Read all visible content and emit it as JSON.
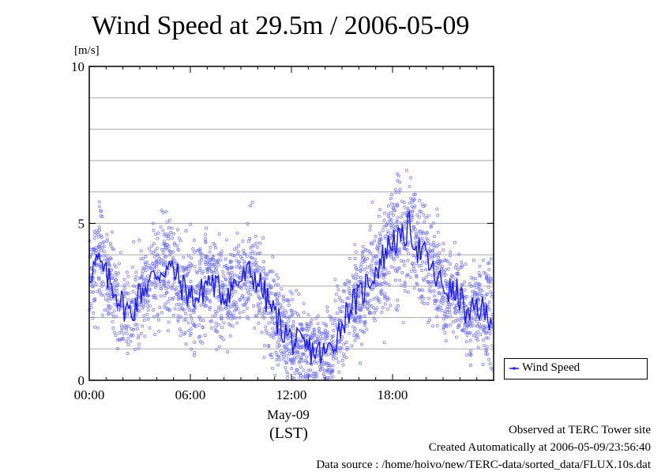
{
  "header": {
    "title": "Wind Speed at 29.5m / 2006-05-09",
    "unit": "[m/s]"
  },
  "legend": {
    "label": "Wind Speed"
  },
  "footer": {
    "site": "Observed at TERC Tower site",
    "created": "Created Automatically at 2006-05-09/23:56:40",
    "source": "Data source : /home/hoivo/new/TERC-data/sorted_data/FLUX.10s.dat"
  },
  "axes": {
    "date_label": "May-09",
    "tz_label": "(LST)"
  },
  "colors": {
    "series": "#1a1aee",
    "scatter": "#6f6ff2",
    "grid": "#a9a9a9"
  },
  "chart_data": {
    "type": "line",
    "title": "Wind Speed at 29.5m / 2006-05-09",
    "ylabel": "[m/s]",
    "xlabel": "(LST)",
    "ylim": [
      0,
      10
    ],
    "yticks": [
      "0",
      "5",
      "10"
    ],
    "xlim": [
      0,
      24
    ],
    "xticks": [
      "00:00",
      "06:00",
      "12:00",
      "18:00"
    ],
    "grid": "horizontal",
    "legend_position": "right",
    "scatter_spread": 0.9,
    "series": [
      {
        "name": "Wind Speed",
        "x": [
          0.0,
          0.5,
          1.0,
          1.5,
          2.0,
          2.5,
          3.0,
          3.5,
          4.0,
          4.5,
          5.0,
          5.5,
          6.0,
          6.5,
          7.0,
          7.5,
          8.0,
          8.5,
          9.0,
          9.5,
          10.0,
          10.5,
          11.0,
          11.5,
          12.0,
          12.5,
          13.0,
          13.5,
          14.0,
          14.5,
          15.0,
          15.5,
          16.0,
          16.5,
          17.0,
          17.5,
          18.0,
          18.5,
          19.0,
          19.5,
          20.0,
          20.5,
          21.0,
          21.5,
          22.0,
          22.5,
          23.0,
          23.5
        ],
        "values": [
          3.4,
          3.8,
          3.3,
          2.9,
          2.4,
          2.1,
          2.8,
          3.1,
          3.4,
          3.6,
          3.5,
          3.0,
          2.7,
          2.6,
          3.2,
          3.0,
          2.7,
          3.0,
          3.2,
          3.4,
          3.2,
          2.6,
          2.1,
          1.6,
          1.3,
          1.1,
          1.0,
          0.9,
          0.8,
          1.2,
          1.8,
          2.4,
          2.6,
          3.1,
          3.5,
          4.0,
          4.5,
          4.4,
          4.9,
          4.2,
          3.9,
          3.3,
          3.0,
          2.8,
          2.7,
          1.9,
          2.4,
          2.1
        ]
      }
    ]
  }
}
